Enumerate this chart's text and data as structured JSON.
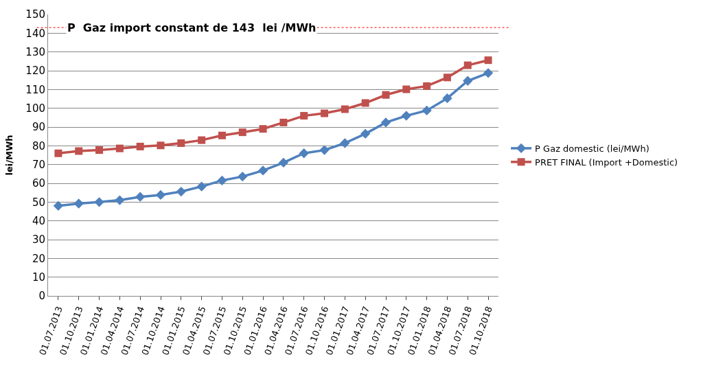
{
  "chart_data": {
    "type": "line",
    "ylabel": "lei/MWh",
    "categories": [
      "01.07.2013",
      "01.10.2013",
      "01.01.2014",
      "01.04.2014",
      "01.07.2014",
      "01.10.2014",
      "01.01.2015",
      "01.04.2015",
      "01.07.2015",
      "01.10.2015",
      "01.01.2016",
      "01.04.2016",
      "01.07.2016",
      "01.10.2016",
      "01.01.2017",
      "01.04.2017",
      "01.07.2017",
      "01.10.2017",
      "01.01.2018",
      "01.04.2018",
      "01.07.2018",
      "01.10.2018"
    ],
    "series": [
      {
        "name": "P Gaz domestic (lei/MWh)",
        "color": "#4f81bd",
        "marker": "diamond",
        "values": [
          48,
          49.2,
          50,
          51,
          52.8,
          53.8,
          55.6,
          58.3,
          61.5,
          63.6,
          66.8,
          71,
          76,
          77.7,
          81.4,
          86.4,
          92.4,
          96,
          98.8,
          105.3,
          114.6,
          118.8
        ]
      },
      {
        "name": "PRET FINAL (Import +Domestic)",
        "color": "#c0504d",
        "marker": "square",
        "values": [
          76,
          77.2,
          77.7,
          78.6,
          79.6,
          80.2,
          81.4,
          83,
          85.5,
          87.2,
          89,
          92.4,
          96,
          97.3,
          99.5,
          102.8,
          107.1,
          110.1,
          111.8,
          116.4,
          122.9,
          125.6
        ]
      }
    ],
    "ylim": [
      0,
      150
    ],
    "yticks": [
      0,
      10,
      20,
      30,
      40,
      50,
      60,
      70,
      80,
      90,
      100,
      110,
      120,
      130,
      140,
      150
    ],
    "grid": "y",
    "legend": "right",
    "ref_lines": [
      {
        "axis": "y",
        "value": 143,
        "label": "P  Gaz import constant de 143  lei /MWh",
        "color": "#ff0000",
        "line_style": "dotted"
      }
    ]
  }
}
